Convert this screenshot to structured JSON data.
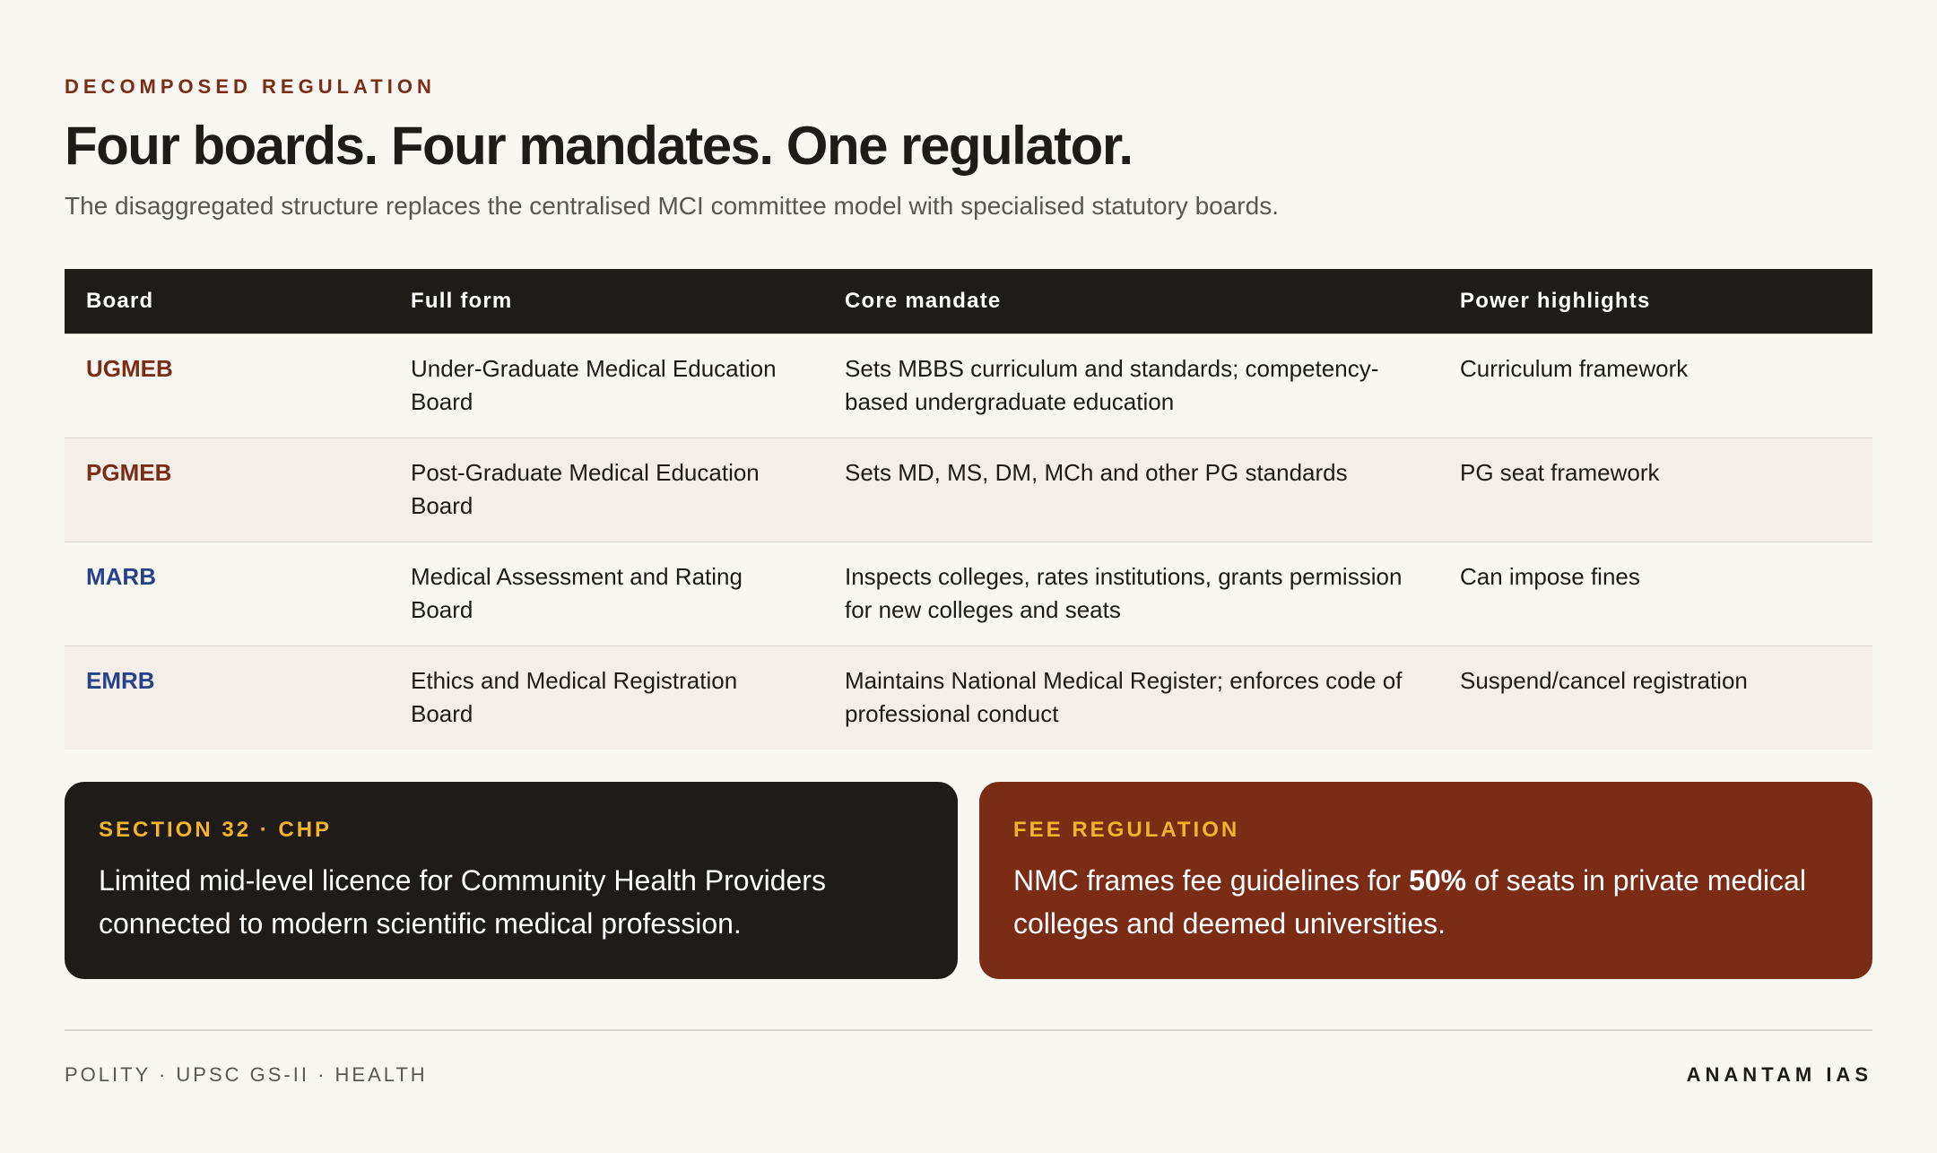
{
  "header": {
    "eyebrow": "DECOMPOSED REGULATION",
    "title": "Four boards. Four mandates. One regulator.",
    "subtitle": "The disaggregated structure replaces the centralised MCI committee model with specialised statutory boards."
  },
  "table": {
    "columns": [
      "Board",
      "Full form",
      "Core mandate",
      "Power highlights"
    ],
    "rows": [
      {
        "board": "UGMEB",
        "board_color": "#7b2c15",
        "full_form": "Under-Graduate Medical Education Board",
        "mandate": "Sets MBBS curriculum and standards; competency-based undergraduate education",
        "power": "Curriculum framework"
      },
      {
        "board": "PGMEB",
        "board_color": "#7b2c15",
        "full_form": "Post-Graduate Medical Education Board",
        "mandate": "Sets MD, MS, DM, MCh and other PG standards",
        "power": "PG seat framework"
      },
      {
        "board": "MARB",
        "board_color": "#27418a",
        "full_form": "Medical Assessment and Rating Board",
        "mandate": "Inspects colleges, rates institutions, grants permission for new colleges and seats",
        "power": "Can impose fines"
      },
      {
        "board": "EMRB",
        "board_color": "#27418a",
        "full_form": "Ethics and Medical Registration Board",
        "mandate": "Maintains National Medical Register; enforces code of professional conduct",
        "power": "Suspend/cancel registration"
      }
    ]
  },
  "callouts": {
    "chp": {
      "tag": "SECTION 32 · CHP",
      "body": "Limited mid-level licence for Community Health Providers connected to modern scientific medical profession."
    },
    "fee": {
      "tag": "FEE REGULATION",
      "body_pre": "NMC frames fee guidelines for ",
      "body_bold": "50%",
      "body_post": " of seats in private medical colleges and deemed universities."
    }
  },
  "footer": {
    "left": "POLITY · UPSC GS-II · HEALTH",
    "right": "ANANTAM IAS"
  },
  "colors": {
    "background": "#f9f7f2",
    "dark": "#1e1b18",
    "rust": "#7b2c15",
    "navy": "#27418a",
    "gold": "#f4b42a"
  }
}
